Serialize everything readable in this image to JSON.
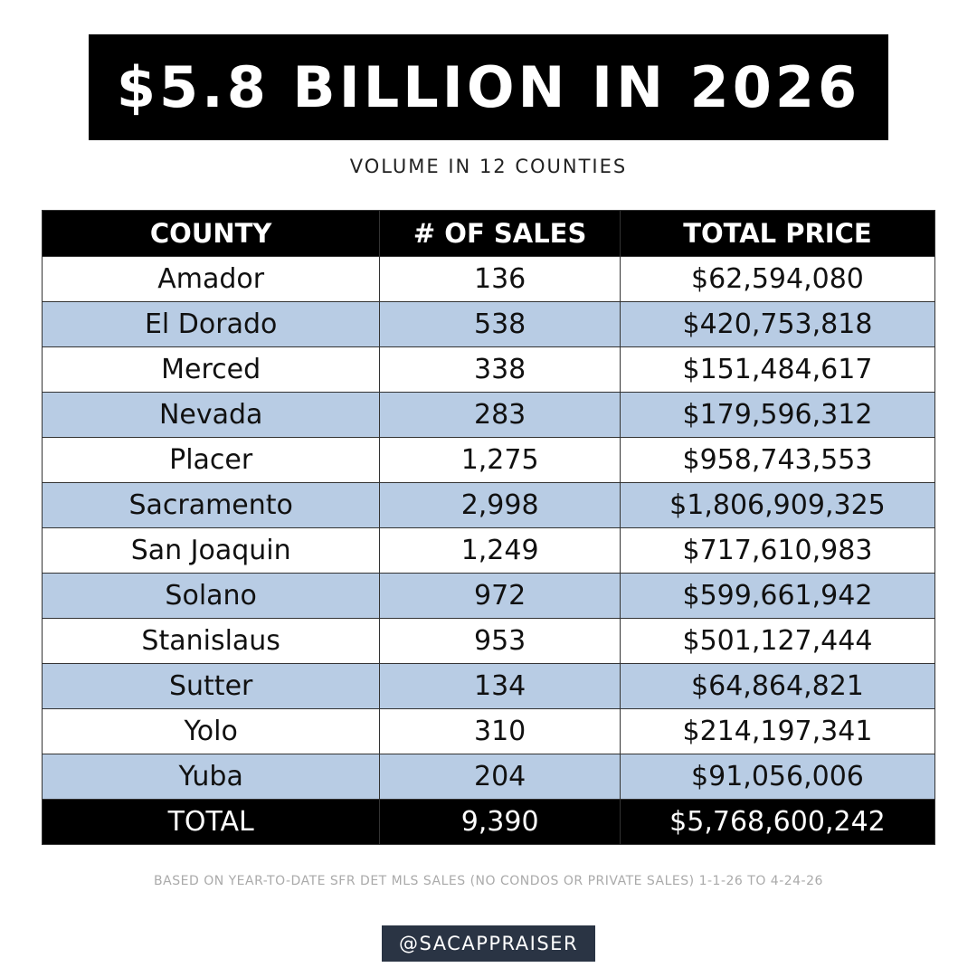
{
  "header": {
    "title": "$5.8 BILLION IN 2026",
    "subtitle": "VOLUME IN 12 COUNTIES"
  },
  "table": {
    "columns": [
      "COUNTY",
      "# OF SALES",
      "TOTAL PRICE"
    ],
    "rows": [
      [
        "Amador",
        "136",
        "$62,594,080"
      ],
      [
        "El Dorado",
        "538",
        "$420,753,818"
      ],
      [
        "Merced",
        "338",
        "$151,484,617"
      ],
      [
        "Nevada",
        "283",
        "$179,596,312"
      ],
      [
        "Placer",
        "1,275",
        "$958,743,553"
      ],
      [
        "Sacramento",
        "2,998",
        "$1,806,909,325"
      ],
      [
        "San Joaquin",
        "1,249",
        "$717,610,983"
      ],
      [
        "Solano",
        "972",
        "$599,661,942"
      ],
      [
        "Stanislaus",
        "953",
        "$501,127,444"
      ],
      [
        "Sutter",
        "134",
        "$64,864,821"
      ],
      [
        "Yolo",
        "310",
        "$214,197,341"
      ],
      [
        "Yuba",
        "204",
        "$91,056,006"
      ]
    ],
    "total": [
      "TOTAL",
      "9,390",
      "$5,768,600,242"
    ]
  },
  "footnote": "BASED ON YEAR-TO-DATE SFR DET MLS SALES (NO CONDOS OR PRIVATE SALES) 1-1-26 TO 4-24-26",
  "handle": "@SACAPPRAISER"
}
